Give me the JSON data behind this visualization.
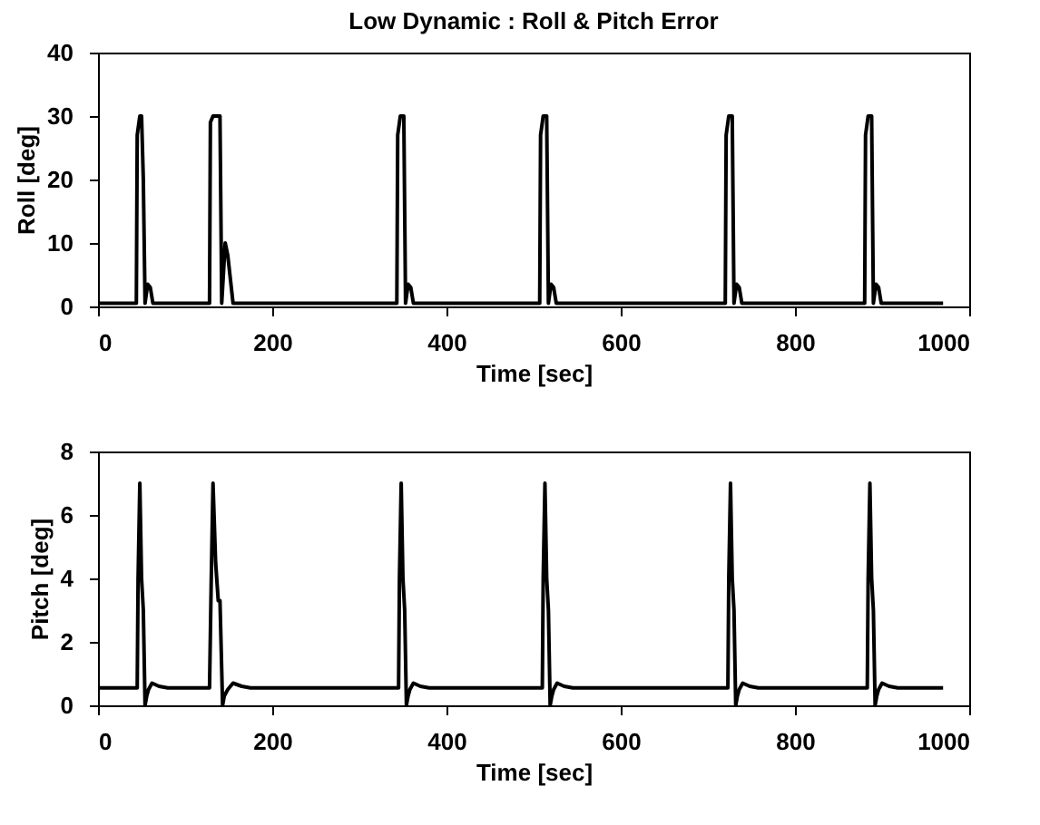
{
  "chart_data": [
    {
      "type": "line",
      "title": "Low Dynamic : Roll & Pitch Error",
      "xlabel": "Time [sec]",
      "ylabel": "Roll [deg]",
      "xlim": [
        0,
        1000
      ],
      "xticks": [
        0,
        200,
        400,
        600,
        800,
        1000
      ],
      "ylim": [
        0,
        40
      ],
      "yticks": [
        0,
        10,
        20,
        30,
        40
      ],
      "grid": false,
      "marker": "none",
      "line_style": "solid",
      "series": [
        {
          "color": "#000000",
          "x": [
            0,
            44,
            45,
            48,
            50,
            52,
            54,
            57,
            60,
            63,
            128,
            129,
            132,
            140,
            142,
            146,
            149,
            155,
            343,
            344,
            347,
            351,
            353,
            356,
            359,
            362,
            507,
            508,
            511,
            515,
            517,
            520,
            523,
            526,
            720,
            721,
            724,
            728,
            730,
            733,
            736,
            739,
            880,
            881,
            884,
            888,
            890,
            893,
            896,
            899,
            970
          ],
          "values": [
            0.5,
            0.5,
            27,
            30,
            30,
            20,
            0.5,
            3.5,
            3,
            0.5,
            0.5,
            29,
            30,
            30,
            0.5,
            10,
            8,
            0.5,
            0.5,
            27,
            30,
            30,
            0.5,
            3.5,
            3,
            0.5,
            0.5,
            27,
            30,
            30,
            0.5,
            3.5,
            3,
            0.5,
            0.5,
            27,
            30,
            30,
            0.5,
            3.5,
            3,
            0.5,
            0.5,
            27,
            30,
            30,
            0.5,
            3.5,
            3,
            0.5,
            0.5
          ]
        }
      ]
    },
    {
      "type": "line",
      "xlabel": "Time [sec]",
      "ylabel": "Pitch [deg]",
      "xlim": [
        0,
        1000
      ],
      "xticks": [
        0,
        200,
        400,
        600,
        800,
        1000
      ],
      "ylim": [
        0,
        8
      ],
      "yticks": [
        0,
        2,
        4,
        6,
        8
      ],
      "grid": false,
      "marker": "none",
      "line_style": "solid",
      "series": [
        {
          "color": "#000000",
          "x": [
            0,
            45,
            46,
            48,
            50,
            52,
            54,
            56,
            58,
            62,
            70,
            80,
            128,
            130,
            132,
            135,
            138,
            140,
            143,
            145,
            149,
            155,
            165,
            175,
            345,
            346,
            348,
            350,
            352,
            354,
            356,
            358,
            362,
            370,
            380,
            510,
            511,
            513,
            515,
            517,
            519,
            521,
            523,
            527,
            535,
            545,
            723,
            724,
            726,
            728,
            730,
            732,
            734,
            736,
            740,
            748,
            758,
            883,
            884,
            886,
            888,
            890,
            892,
            894,
            896,
            900,
            908,
            918,
            970
          ],
          "values": [
            0.55,
            0.55,
            4,
            7,
            4,
            3,
            0,
            0.3,
            0.5,
            0.7,
            0.6,
            0.55,
            0.55,
            4,
            7,
            4.5,
            3.3,
            3.3,
            0,
            0.3,
            0.5,
            0.7,
            0.6,
            0.55,
            0.55,
            4,
            7,
            4,
            3,
            0,
            0.3,
            0.5,
            0.7,
            0.6,
            0.55,
            0.55,
            4,
            7,
            4,
            3,
            0,
            0.3,
            0.5,
            0.7,
            0.6,
            0.55,
            0.55,
            4,
            7,
            4,
            3,
            0,
            0.3,
            0.5,
            0.7,
            0.6,
            0.55,
            0.55,
            4,
            7,
            4,
            3,
            0,
            0.3,
            0.5,
            0.7,
            0.6,
            0.55,
            0.55
          ]
        }
      ]
    }
  ]
}
